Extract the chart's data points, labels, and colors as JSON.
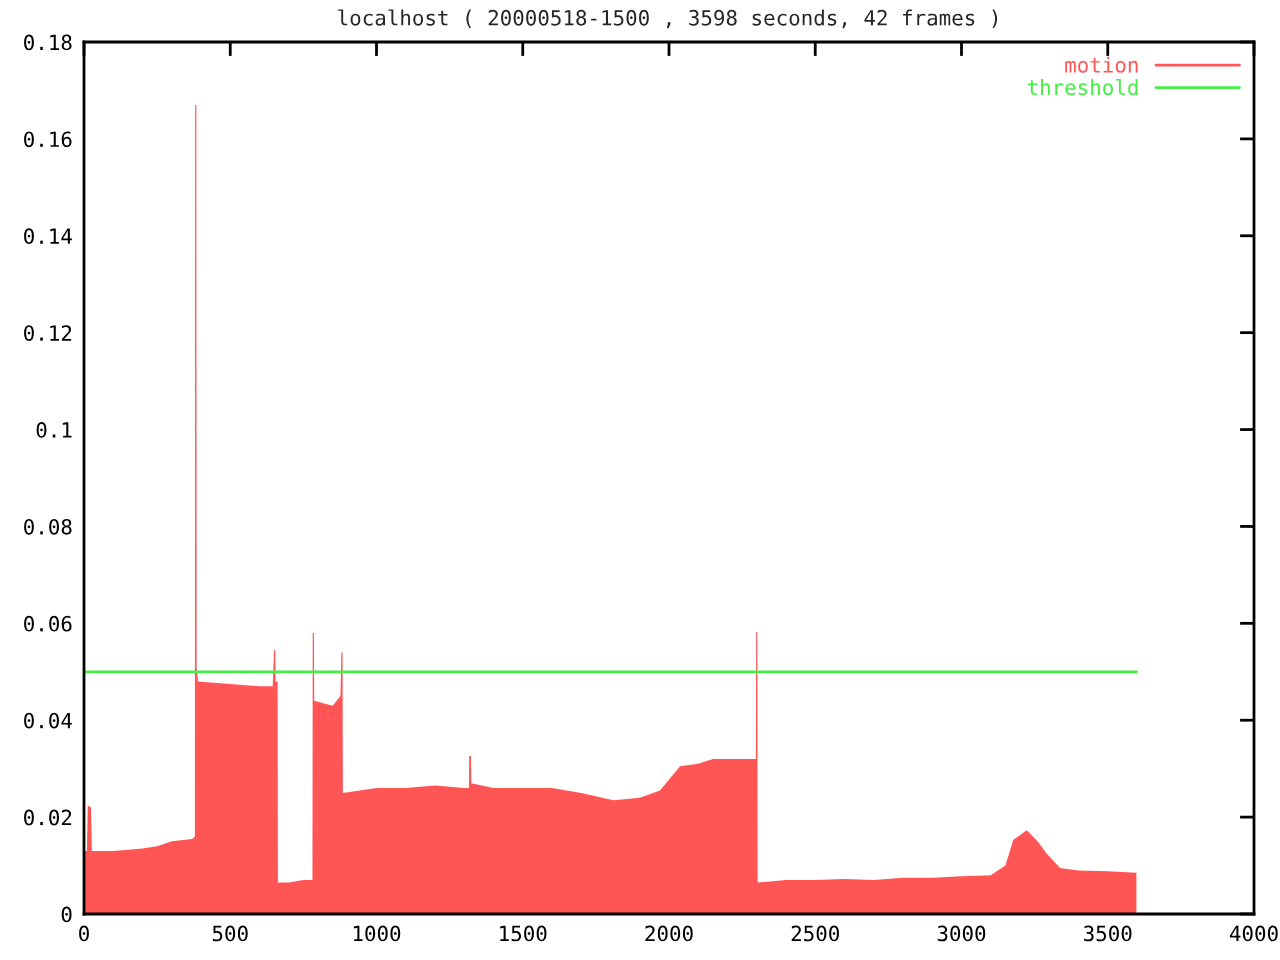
{
  "chart_data": {
    "type": "area",
    "title": "localhost ( 20000518-1500 , 3598 seconds, 42 frames )",
    "series": [
      {
        "name": "motion",
        "color": "#ff5555",
        "x": [
          0,
          10,
          13,
          24,
          27,
          100,
          200,
          250,
          300,
          370,
          379,
          380,
          384,
          385,
          390,
          500,
          600,
          645,
          650,
          654,
          655,
          662,
          663,
          700,
          750,
          781,
          782,
          786,
          787,
          850,
          877,
          880,
          884,
          885,
          1000,
          1100,
          1200,
          1300,
          1316,
          1317,
          1323,
          1324,
          1400,
          1500,
          1600,
          1700,
          1810,
          1900,
          1969,
          2038,
          2100,
          2150,
          2250,
          2297,
          2298,
          2302,
          2303,
          2400,
          2500,
          2600,
          2700,
          2800,
          2900,
          3000,
          3100,
          3150,
          3177,
          3223,
          3260,
          3291,
          3337,
          3400,
          3500,
          3598
        ],
        "values": [
          0.013,
          0.013,
          0.0224,
          0.022,
          0.013,
          0.013,
          0.0135,
          0.014,
          0.015,
          0.0155,
          0.016,
          0.167,
          0.167,
          0.051,
          0.048,
          0.0475,
          0.047,
          0.047,
          0.0545,
          0.0545,
          0.048,
          0.048,
          0.0065,
          0.0065,
          0.007,
          0.007,
          0.058,
          0.058,
          0.044,
          0.043,
          0.045,
          0.054,
          0.054,
          0.025,
          0.026,
          0.026,
          0.0265,
          0.026,
          0.026,
          0.0326,
          0.0326,
          0.027,
          0.026,
          0.026,
          0.026,
          0.025,
          0.0235,
          0.024,
          0.0255,
          0.0305,
          0.031,
          0.032,
          0.032,
          0.032,
          0.0582,
          0.0582,
          0.0065,
          0.007,
          0.007,
          0.0072,
          0.007,
          0.0075,
          0.0075,
          0.0078,
          0.008,
          0.01,
          0.0153,
          0.0173,
          0.015,
          0.0125,
          0.0095,
          0.009,
          0.0088,
          0.0085
        ]
      },
      {
        "name": "threshold",
        "type": "line",
        "color": "#44ee44",
        "x": [
          0,
          3598
        ],
        "values": [
          0.05,
          0.05
        ]
      }
    ],
    "xlim": [
      0,
      4000
    ],
    "xticks": [
      0,
      500,
      1000,
      1500,
      2000,
      2500,
      3000,
      3500,
      4000
    ],
    "ylim": [
      0,
      0.18
    ],
    "yticks": [
      0,
      0.02,
      0.04,
      0.06,
      0.08,
      0.1,
      0.12,
      0.14,
      0.16,
      0.18
    ],
    "legend": "top right"
  }
}
